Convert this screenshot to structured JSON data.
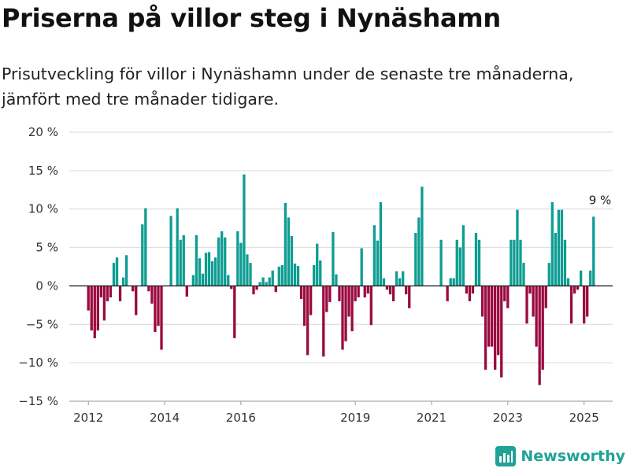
{
  "header": {
    "title": "Priserna på villor steg i Nynäshamn",
    "subtitle": "Prisutveckling för villor i Nynäshamn under de senaste tre månaderna, jämfört med tre månader tidigare."
  },
  "brand": {
    "name": "Newsworthy",
    "icon": "bar-chart-logo-icon",
    "color": "#1fa396"
  },
  "colors": {
    "positive": "#0e9d92",
    "negative": "#9a0a3f",
    "grid": "#d9d9d9",
    "zero_line": "#222222"
  },
  "chart_data": {
    "type": "bar",
    "title": "Priserna på villor steg i Nynäshamn",
    "subtitle": "Prisutveckling för villor i Nynäshamn under de senaste tre månaderna, jämfört med tre månader tidigare.",
    "xlabel": "",
    "ylabel": "",
    "ylim": [
      -15,
      20
    ],
    "yticks": [
      -15,
      -10,
      -5,
      0,
      5,
      10,
      15,
      20
    ],
    "ytick_labels": [
      "−15 %",
      "−10 %",
      "−5 %",
      "0 %",
      "5 %",
      "10 %",
      "15 %",
      "20 %"
    ],
    "xticks": [
      2012,
      2014,
      2016,
      2019,
      2021,
      2023,
      2025
    ],
    "xlim": [
      2011.5,
      2025.75
    ],
    "grid": true,
    "annotation": {
      "text": "9 %",
      "x": 2025.42,
      "y": 9
    },
    "x_start": 2012.0,
    "x_step": 0.08333,
    "values": [
      -3.2,
      -5.8,
      -6.8,
      -5.8,
      -1.5,
      -4.5,
      -2.0,
      -1.5,
      3.0,
      3.7,
      -2.0,
      1.1,
      4.0,
      0,
      -0.7,
      -3.8,
      0,
      8.0,
      10.1,
      -0.7,
      -2.3,
      -6.0,
      -5.2,
      -8.3,
      0,
      0,
      9.1,
      0,
      10.1,
      6.0,
      6.6,
      -1.4,
      0,
      1.4,
      6.6,
      3.6,
      1.6,
      4.3,
      4.4,
      3.2,
      3.7,
      6.3,
      7.1,
      6.3,
      1.4,
      -0.4,
      -6.8,
      7.1,
      5.6,
      14.5,
      4.1,
      3.0,
      -1.1,
      -0.5,
      0.5,
      1.1,
      0.5,
      1.1,
      2.0,
      -0.8,
      2.5,
      2.7,
      10.8,
      8.9,
      6.5,
      2.9,
      2.6,
      -1.7,
      -5.2,
      -9.0,
      -3.8,
      2.7,
      5.5,
      3.3,
      -9.2,
      -3.4,
      -2.1,
      7.0,
      1.5,
      -2.0,
      -8.3,
      -7.2,
      -4.0,
      -5.9,
      -2.0,
      -1.5,
      4.9,
      -1.5,
      -1.0,
      -5.1,
      7.9,
      5.9,
      10.9,
      1.0,
      -0.5,
      -1.1,
      -2.0,
      1.9,
      1.0,
      1.9,
      -1.1,
      -2.9,
      0,
      6.9,
      8.9,
      12.9,
      0,
      0,
      0,
      0,
      0,
      6.0,
      0,
      -2.0,
      1.0,
      1.0,
      6.0,
      5.0,
      7.9,
      -1.0,
      -2.0,
      -1.0,
      6.9,
      6.0,
      -4.0,
      -10.9,
      -7.9,
      -7.9,
      -10.9,
      -9.0,
      -11.9,
      -2.0,
      -2.9,
      6.0,
      6.0,
      9.9,
      6.0,
      3.0,
      -4.9,
      -1.0,
      -4.0,
      -7.9,
      -12.9,
      -10.9,
      -2.9,
      3.0,
      10.9,
      6.9,
      9.9,
      9.9,
      6.0,
      1.0,
      -4.9,
      -1.0,
      -0.5,
      2.0,
      -4.9,
      -4.0,
      2.0,
      9.0
    ]
  }
}
